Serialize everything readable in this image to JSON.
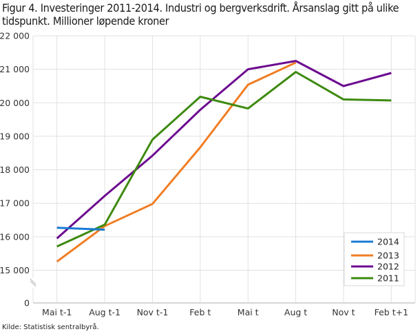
{
  "title": "Figur 4. Investeringer 2011-2014. Industri og bergverksdrift. Årsanslag gitt på ulike tidspunkt. Millioner løpende kroner",
  "source": "Kilde: Statistisk sentralbyrå.",
  "colors": {
    "2014": "#1a7ad4",
    "2013": "#f07d23",
    "2012": "#6c0a8f",
    "2011": "#3d8a0f",
    "grid": "#e1e1e1",
    "axis_text": "#333333"
  },
  "chart_data": {
    "type": "line",
    "title": "Figur 4. Investeringer 2011-2014. Industri og bergverksdrift. Årsanslag gitt på ulike tidspunkt. Millioner løpende kroner",
    "xlabel": "",
    "ylabel": "",
    "categories": [
      "Mai t-1",
      "Aug t-1",
      "Nov t-1",
      "Feb t",
      "Mai t",
      "Aug t",
      "Nov t",
      "Feb t+1"
    ],
    "y_ticks": [
      0,
      15000,
      16000,
      17000,
      18000,
      19000,
      20000,
      21000,
      22000
    ],
    "y_tick_labels": [
      "0",
      "15 000",
      "16 000",
      "17 000",
      "18 000",
      "19 000",
      "20 000",
      "21 000",
      "22 000"
    ],
    "ylim": [
      0,
      22000
    ],
    "y_axis_break": "between 0 and 15 000",
    "grid": true,
    "legend_position": "bottom-right inside plot",
    "series": [
      {
        "name": "2014",
        "values": [
          16270,
          16210,
          null,
          null,
          null,
          null,
          null,
          null
        ]
      },
      {
        "name": "2013",
        "values": [
          15260,
          16320,
          16980,
          18670,
          20540,
          21200,
          null,
          null
        ]
      },
      {
        "name": "2012",
        "values": [
          15950,
          17220,
          18420,
          19790,
          21000,
          21250,
          20500,
          20890
        ]
      },
      {
        "name": "2011",
        "values": [
          15710,
          16360,
          18900,
          20180,
          19830,
          20920,
          20100,
          20070
        ]
      }
    ]
  },
  "legend": {
    "items": [
      {
        "label": "2014"
      },
      {
        "label": "2013"
      },
      {
        "label": "2012"
      },
      {
        "label": "2011"
      }
    ]
  }
}
